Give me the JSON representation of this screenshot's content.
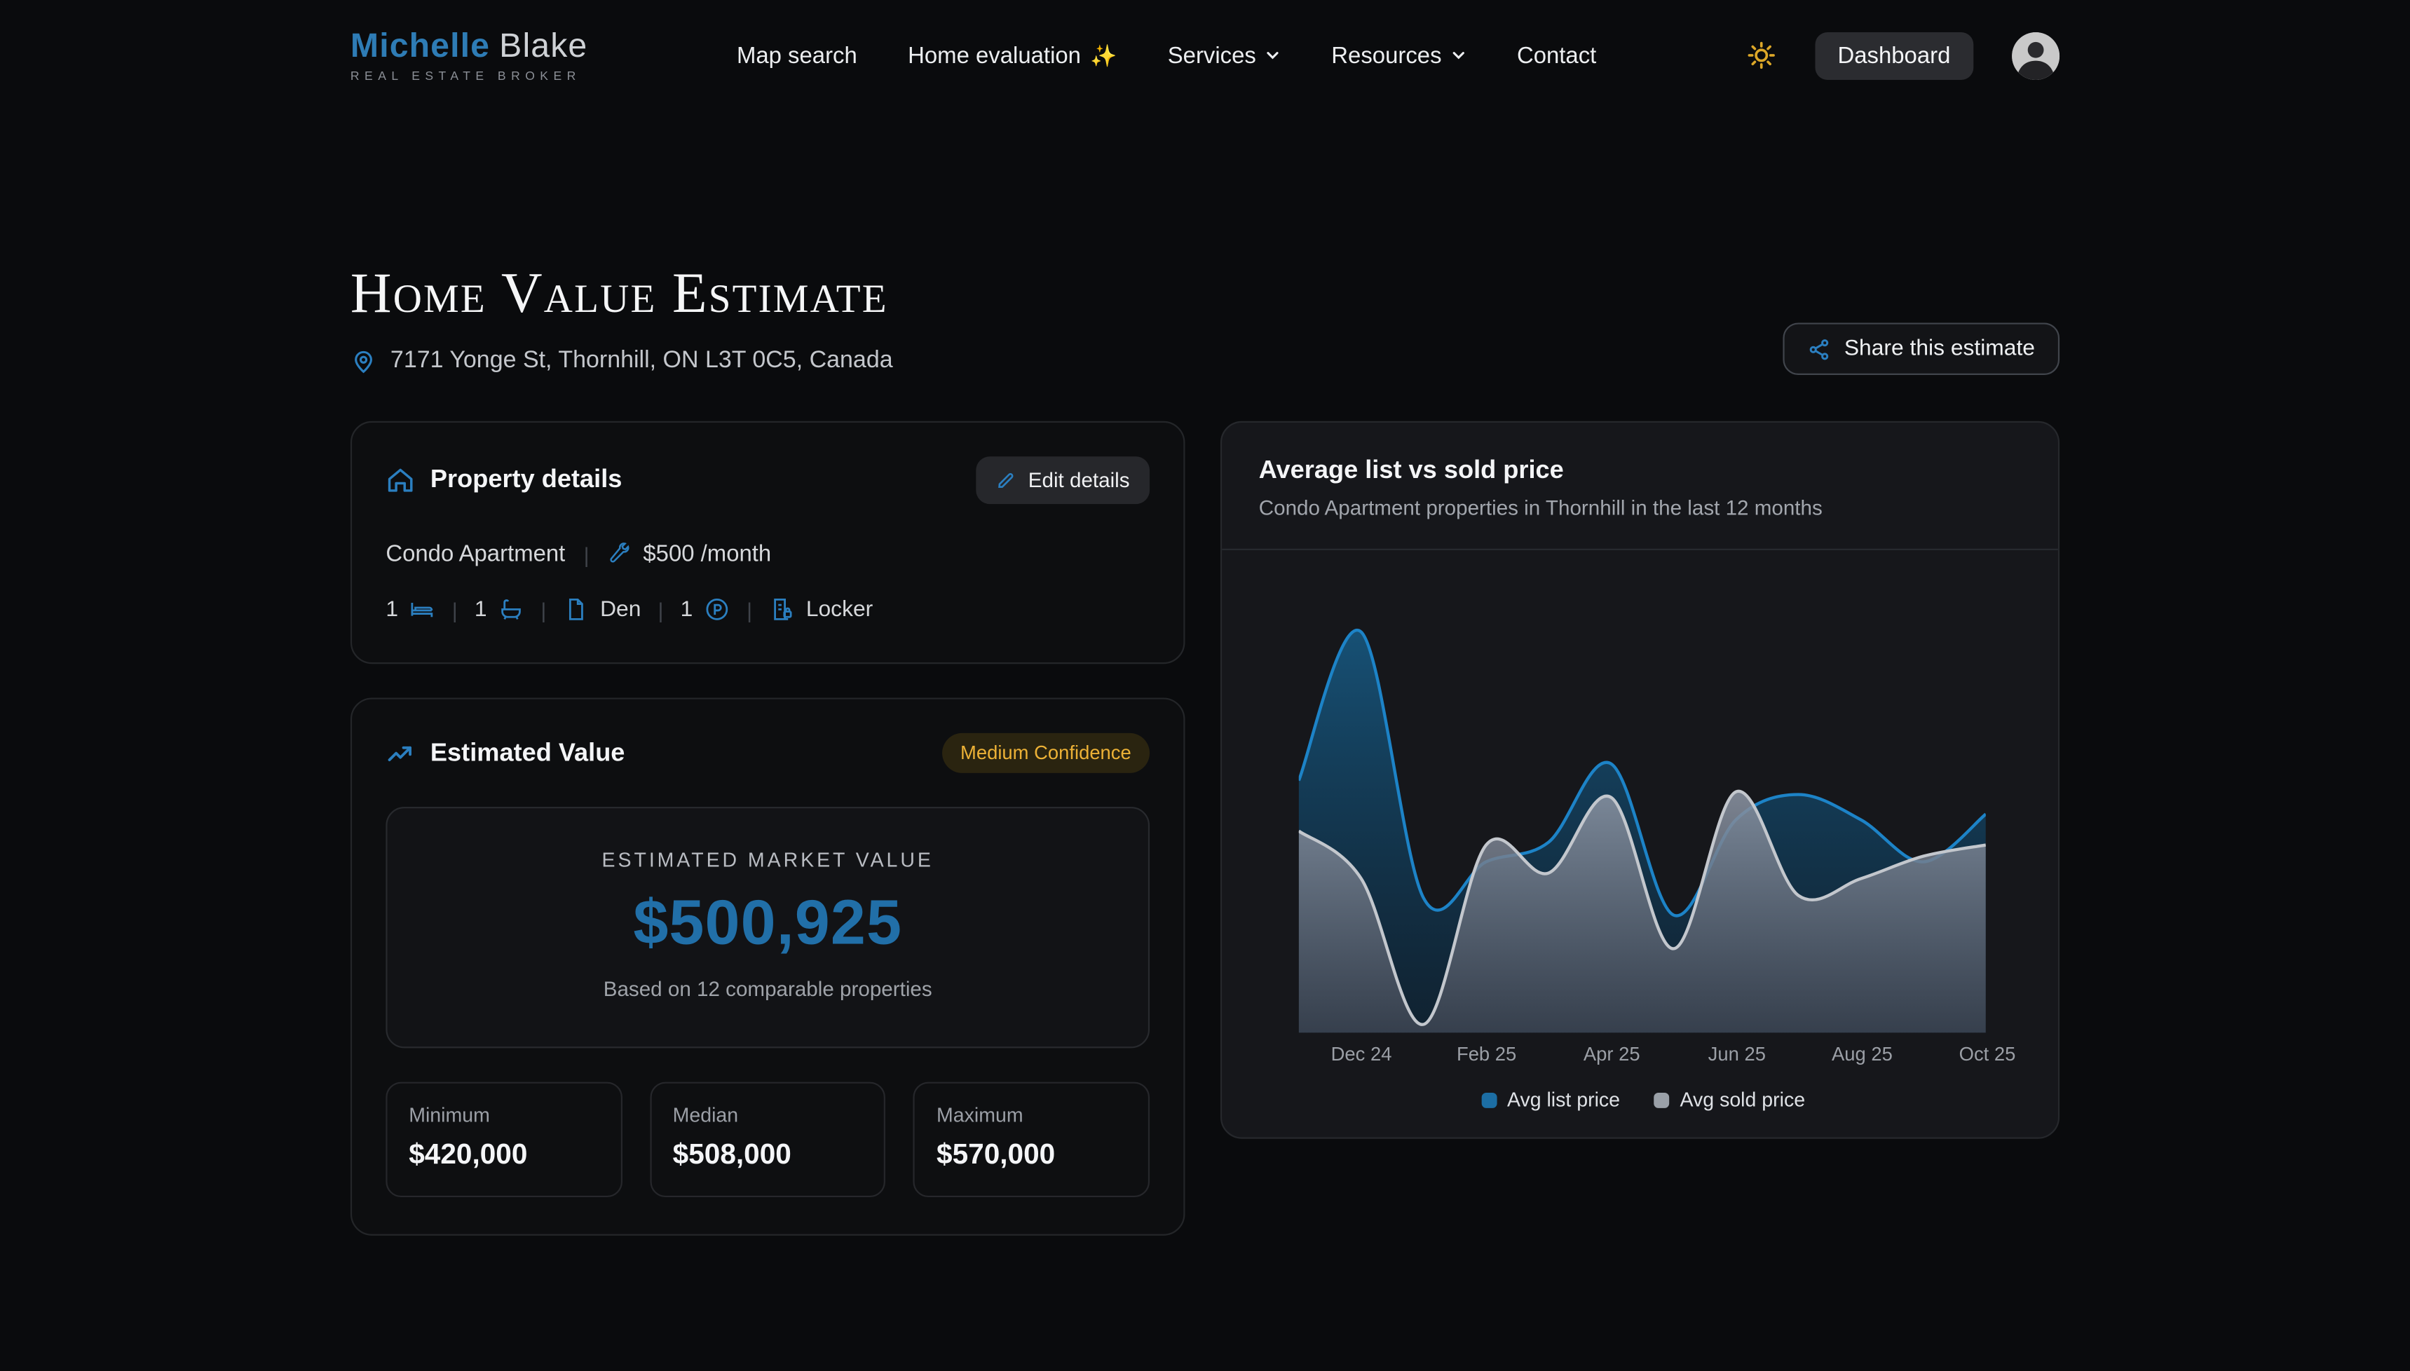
{
  "colors": {
    "accent_blue": "#2b7fc0",
    "price_blue": "#216fa8",
    "gold": "#ecb136",
    "page_bg": "#0a0b0d",
    "chart_card_bg": "#16171b"
  },
  "header": {
    "logo": {
      "first": "Michelle",
      "last": "Blake",
      "subtitle": "REAL ESTATE BROKER"
    },
    "nav": [
      {
        "label": "Map search"
      },
      {
        "label": "Home evaluation",
        "suffix": "✨"
      },
      {
        "label": "Services",
        "has_dropdown": true
      },
      {
        "label": "Resources",
        "has_dropdown": true
      },
      {
        "label": "Contact"
      }
    ],
    "dashboard_label": "Dashboard"
  },
  "page": {
    "title": "Home Value Estimate",
    "address": "7171 Yonge St, Thornhill, ON L3T 0C5, Canada",
    "share_label": "Share this estimate"
  },
  "property_card": {
    "title": "Property details",
    "edit_label": "Edit details",
    "type": "Condo Apartment",
    "fee": "$500 /month",
    "features": [
      {
        "count": "1",
        "label": ""
      },
      {
        "count": "1",
        "label": ""
      },
      {
        "count": "",
        "label": "Den"
      },
      {
        "count": "1",
        "label": ""
      },
      {
        "count": "",
        "label": "Locker"
      }
    ]
  },
  "estimate_card": {
    "title": "Estimated Value",
    "badge": "Medium Confidence",
    "value_label": "ESTIMATED MARKET VALUE",
    "value": "$500,925",
    "value_note": "Based on 12 comparable properties",
    "stats": [
      {
        "label": "Minimum",
        "value": "$420,000"
      },
      {
        "label": "Median",
        "value": "$508,000"
      },
      {
        "label": "Maximum",
        "value": "$570,000"
      }
    ]
  },
  "chart_card": {
    "title": "Average list vs sold price",
    "subtitle": "Condo Apartment properties in Thornhill in the last 12 months",
    "chart_data": {
      "type": "area",
      "x": [
        "Nov 24",
        "Dec 24",
        "Jan 25",
        "Feb 25",
        "Mar 25",
        "Apr 25",
        "May 25",
        "Jun 25",
        "Jul 25",
        "Aug 25",
        "Sep 25",
        "Oct 25"
      ],
      "x_tick_labels": [
        "Dec 24",
        "Feb 25",
        "Apr 25",
        "Jun 25",
        "Aug 25",
        "Oct 25"
      ],
      "x_tick_indices": [
        1,
        3,
        5,
        7,
        9,
        11
      ],
      "series": [
        {
          "name": "Avg list price",
          "color": "#1d83c7",
          "fill_top": "#17577f",
          "fill_bottom": "#0c2b42",
          "fill_opacity_top": 0.9,
          "fill_opacity_bottom": 0.55,
          "values": [
            520000,
            573000,
            478000,
            491000,
            498000,
            526000,
            472000,
            506000,
            515000,
            506000,
            491000,
            508000
          ]
        },
        {
          "name": "Avg sold price",
          "color": "#c3c7cd",
          "fill_top": "#8a93a2",
          "fill_bottom": "#454b58",
          "fill_opacity_top": 0.88,
          "fill_opacity_bottom": 0.72,
          "values": [
            502000,
            485000,
            433000,
            497000,
            487000,
            514000,
            460000,
            516000,
            479000,
            485000,
            493000,
            497000
          ]
        }
      ],
      "ylim": [
        430000,
        600000
      ],
      "grid": false,
      "legend_position": "bottom"
    }
  }
}
